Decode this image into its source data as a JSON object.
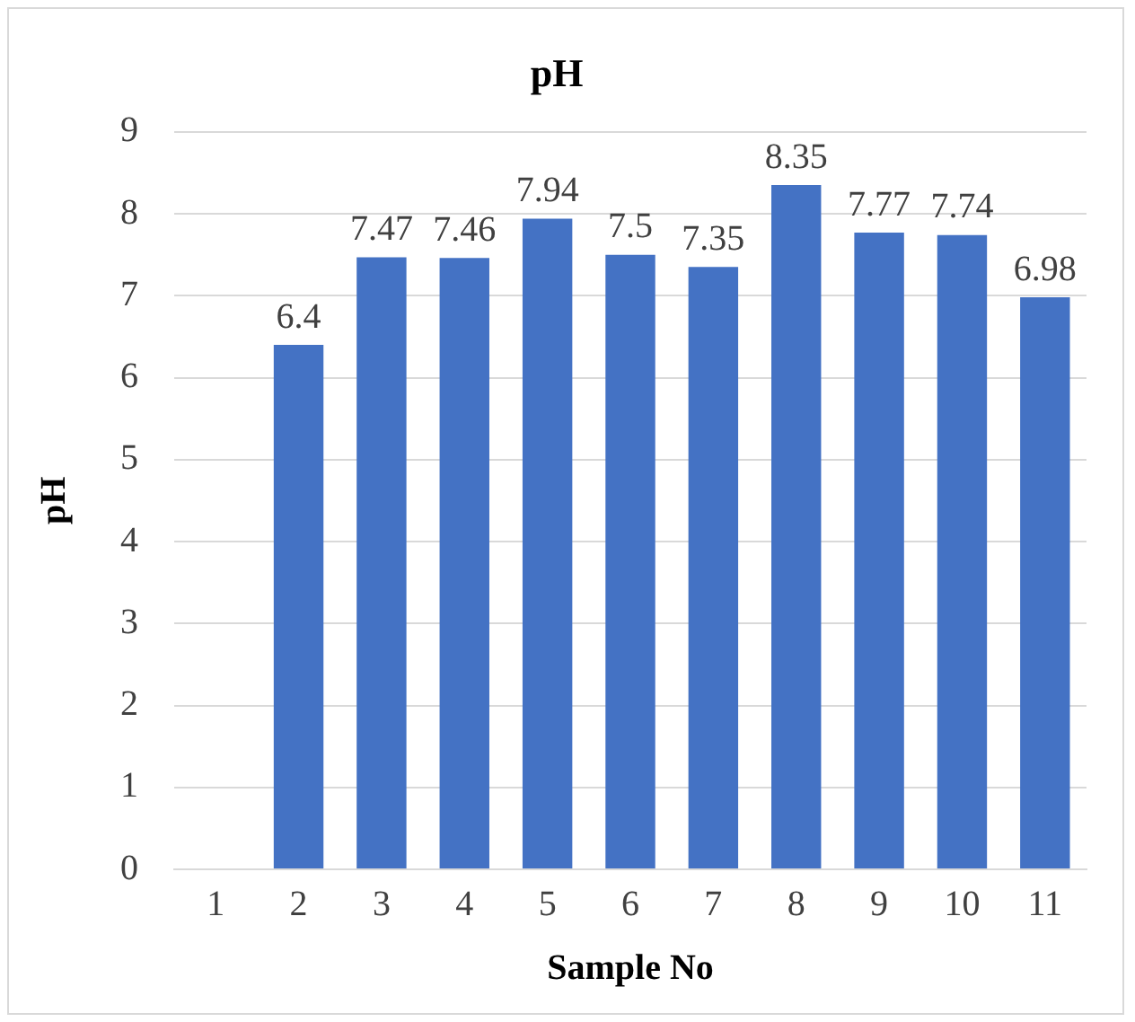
{
  "chart_data": {
    "type": "bar",
    "title": "pH",
    "xlabel": "Sample No",
    "ylabel": "pH",
    "categories": [
      "1",
      "2",
      "3",
      "4",
      "5",
      "6",
      "7",
      "8",
      "9",
      "10",
      "11"
    ],
    "values": [
      null,
      6.4,
      7.47,
      7.46,
      7.94,
      7.5,
      7.35,
      8.35,
      7.77,
      7.74,
      6.98
    ],
    "color": "#4472c4",
    "ylim": [
      0,
      9
    ],
    "yticks": [
      0,
      1,
      2,
      3,
      4,
      5,
      6,
      7,
      8,
      9
    ],
    "grid": "y",
    "data_labels": true,
    "legend": false
  }
}
